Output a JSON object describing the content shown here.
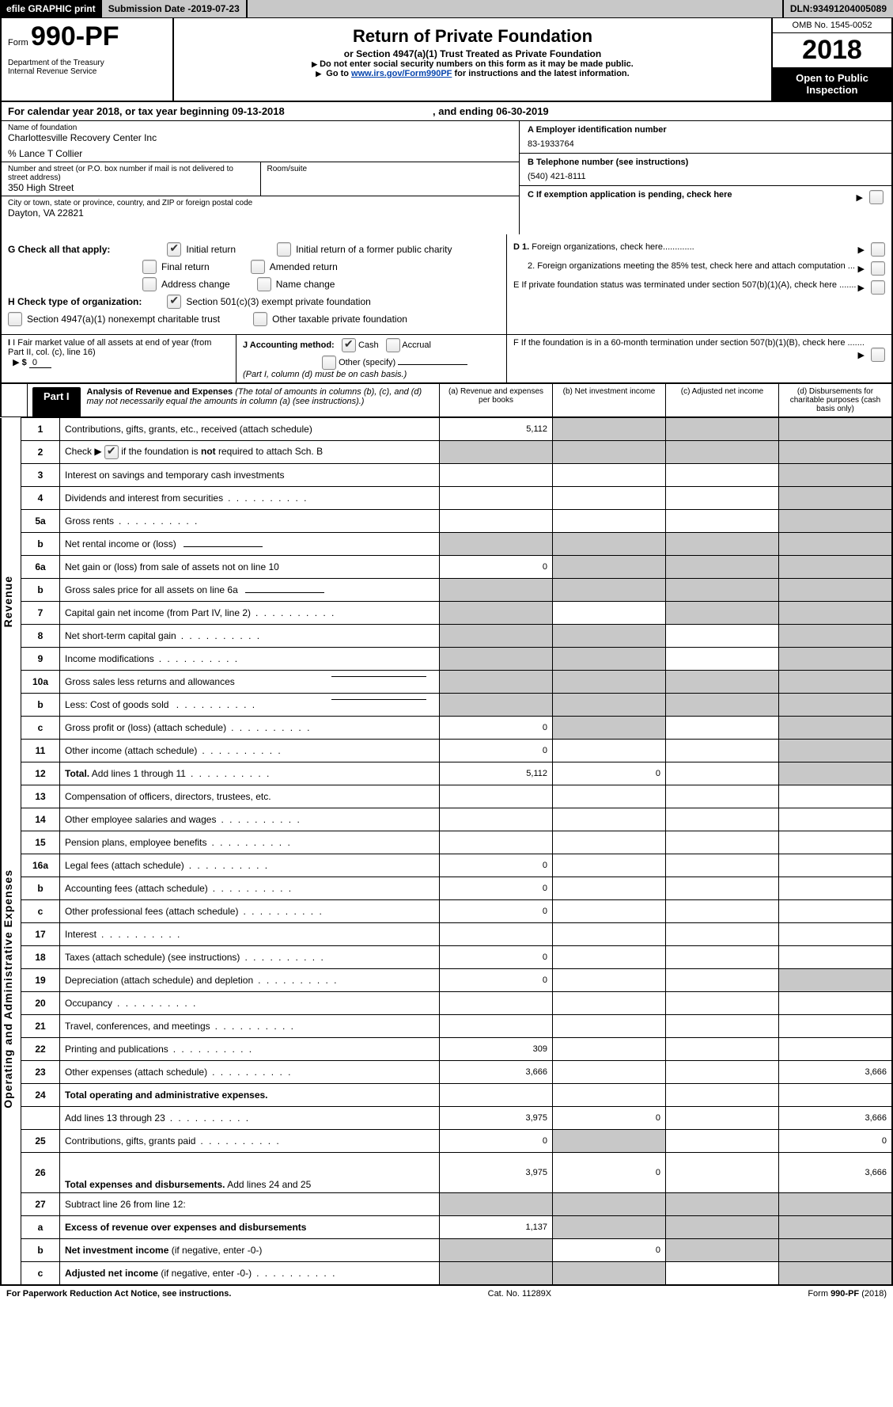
{
  "topbar": {
    "efile": "efile GRAPHIC print",
    "submission_label": "Submission Date - ",
    "submission_date": "2019-07-23",
    "dln_label": "DLN: ",
    "dln": "93491204005089"
  },
  "header": {
    "form_prefix": "Form",
    "form_number": "990-PF",
    "dept1": "Department of the Treasury",
    "dept2": "Internal Revenue Service",
    "title": "Return of Private Foundation",
    "subtitle": "or Section 4947(a)(1) Trust Treated as Private Foundation",
    "warn": "Do not enter social security numbers on this form as it may be made public.",
    "goto_pre": "Go to ",
    "goto_link": "www.irs.gov/Form990PF",
    "goto_post": " for instructions and the latest information.",
    "omb": "OMB No. 1545-0052",
    "year": "2018",
    "open1": "Open to Public",
    "open2": "Inspection"
  },
  "calendar": {
    "pre": "For calendar year 2018, or tax year beginning ",
    "begin": "09-13-2018",
    "mid": ", and ending ",
    "end": "06-30-2019"
  },
  "entity": {
    "name_lbl": "Name of foundation",
    "name": "Charlottesville Recovery Center Inc",
    "care_of": "% Lance T Collier",
    "addr_lbl": "Number and street (or P.O. box number if mail is not delivered to street address)",
    "addr": "350 High Street",
    "room_lbl": "Room/suite",
    "room": "",
    "city_lbl": "City or town, state or province, country, and ZIP or foreign postal code",
    "city": "Dayton, VA  22821"
  },
  "right": {
    "A_lbl": "A Employer identification number",
    "A_val": "83-1933764",
    "B_lbl": "B Telephone number (see instructions)",
    "B_val": "(540) 421-8111",
    "C_lbl": "C  If exemption application is pending, check here",
    "D1": "D 1. Foreign organizations, check here.............",
    "D2": "2. Foreign organizations meeting the 85% test, check here and attach computation ...",
    "E": "E   If private foundation status was terminated under section 507(b)(1)(A), check here .......",
    "F": "F   If the foundation is in a 60-month termination under section 507(b)(1)(B), check here ......."
  },
  "G": {
    "label": "G Check all that apply:",
    "initial": "Initial return",
    "initial_former": "Initial return of a former public charity",
    "final": "Final return",
    "amended": "Amended return",
    "address": "Address change",
    "name": "Name change"
  },
  "H": {
    "label": "H Check type of organization:",
    "opt1": "Section 501(c)(3) exempt private foundation",
    "opt2": "Section 4947(a)(1) nonexempt charitable trust",
    "opt3": "Other taxable private foundation"
  },
  "I": {
    "label": "I Fair market value of all assets at end of year (from Part II, col. (c), line 16)",
    "arrow": "▶",
    "dollar": "$",
    "value": "0"
  },
  "J": {
    "label": "J Accounting method:",
    "cash": "Cash",
    "accrual": "Accrual",
    "other": "Other (specify)",
    "note": "(Part I, column (d) must be on cash basis.)"
  },
  "part1": {
    "tab": "Part I",
    "title": "Analysis of Revenue and Expenses ",
    "note": "(The total of amounts in columns (b), (c), and (d) may not necessarily equal the amounts in column (a) (see instructions).)",
    "cols": {
      "a": "(a)    Revenue and expenses per books",
      "b": "(b)    Net investment income",
      "c": "(c)    Adjusted net income",
      "d": "(d)    Disbursements for charitable purposes (cash basis only)"
    }
  },
  "side": {
    "revenue": "Revenue",
    "expenses": "Operating and Administrative Expenses"
  },
  "rows": [
    {
      "n": "1",
      "d": "Contributions, gifts, grants, etc., received (attach schedule)",
      "a": "5,112",
      "bGrey": true,
      "cGrey": true,
      "dGrey": true
    },
    {
      "n": "2",
      "d": "Check ▶  [CB_CHECKED]  if the foundation is <b>not</b> required to attach Sch. B",
      "aGrey": true,
      "bGrey": true,
      "cGrey": true,
      "dGrey": true
    },
    {
      "n": "3",
      "d": "Interest on savings and temporary cash investments",
      "dGrey": true
    },
    {
      "n": "4",
      "d": "Dividends and interest from securities",
      "dots": true,
      "dGrey": true
    },
    {
      "n": "5a",
      "d": "Gross rents",
      "dots": true,
      "dGrey": true
    },
    {
      "n": "b",
      "d": "Net rental income or (loss)",
      "underline": true,
      "aGrey": true,
      "bGrey": true,
      "cGrey": true,
      "dGrey": true
    },
    {
      "n": "6a",
      "d": "Net gain or (loss) from sale of assets not on line 10",
      "a": "0",
      "bGrey": true,
      "cGrey": true,
      "dGrey": true
    },
    {
      "n": "b",
      "d": "Gross sales price for all assets on line 6a",
      "underline": true,
      "aGrey": true,
      "bGrey": true,
      "cGrey": true,
      "dGrey": true
    },
    {
      "n": "7",
      "d": "Capital gain net income (from Part IV, line 2)",
      "dots": true,
      "aGrey": true,
      "cGrey": true,
      "dGrey": true
    },
    {
      "n": "8",
      "d": "Net short-term capital gain",
      "dots": true,
      "aGrey": true,
      "bGrey": true,
      "dGrey": true
    },
    {
      "n": "9",
      "d": "Income modifications",
      "dots": true,
      "aGrey": true,
      "bGrey": true,
      "dGrey": true
    },
    {
      "n": "10a",
      "d": "Gross sales less returns and allowances",
      "underline_end": true,
      "aGrey": true,
      "bGrey": true,
      "cGrey": true,
      "dGrey": true
    },
    {
      "n": "b",
      "d": "Less: Cost of goods sold",
      "dots": true,
      "underline_end": true,
      "aGrey": true,
      "bGrey": true,
      "cGrey": true,
      "dGrey": true
    },
    {
      "n": "c",
      "d": "Gross profit or (loss) (attach schedule)",
      "dots": true,
      "a": "0",
      "bGrey": true,
      "dGrey": true
    },
    {
      "n": "11",
      "d": "Other income (attach schedule)",
      "dots": true,
      "a": "0",
      "dGrey": true
    },
    {
      "n": "12",
      "d": "<b>Total.</b> Add lines 1 through 11",
      "dots": true,
      "a": "5,112",
      "b": "0",
      "dGrey": true
    }
  ],
  "exp_rows": [
    {
      "n": "13",
      "d": "Compensation of officers, directors, trustees, etc."
    },
    {
      "n": "14",
      "d": "Other employee salaries and wages",
      "dots": true
    },
    {
      "n": "15",
      "d": "Pension plans, employee benefits",
      "dots": true
    },
    {
      "n": "16a",
      "d": "Legal fees (attach schedule)",
      "dots": true,
      "a": "0"
    },
    {
      "n": "b",
      "d": "Accounting fees (attach schedule)",
      "dots": true,
      "a": "0"
    },
    {
      "n": "c",
      "d": "Other professional fees (attach schedule)",
      "dots": true,
      "a": "0"
    },
    {
      "n": "17",
      "d": "Interest",
      "dots": true
    },
    {
      "n": "18",
      "d": "Taxes (attach schedule) (see instructions)",
      "dots": true,
      "a": "0"
    },
    {
      "n": "19",
      "d": "Depreciation (attach schedule) and depletion",
      "dots": true,
      "a": "0",
      "dGrey": true
    },
    {
      "n": "20",
      "d": "Occupancy",
      "dots": true
    },
    {
      "n": "21",
      "d": "Travel, conferences, and meetings",
      "dots": true
    },
    {
      "n": "22",
      "d": "Printing and publications",
      "dots": true,
      "a": "309"
    },
    {
      "n": "23",
      "d": "Other expenses (attach schedule)",
      "dots": true,
      "a": "3,666",
      "dv": "3,666"
    },
    {
      "n": "24",
      "d": "<b>Total operating and administrative expenses.</b>",
      "twoRow": true
    },
    {
      "n": "",
      "d": "Add lines 13 through 23",
      "dots": true,
      "a": "3,975",
      "b": "0",
      "dv": "3,666"
    },
    {
      "n": "25",
      "d": "Contributions, gifts, grants paid",
      "dots": true,
      "a": "0",
      "bGrey": true,
      "dv": "0"
    },
    {
      "n": "26",
      "d": "<b>Total expenses and disbursements.</b> Add lines 24 and 25",
      "tall": true,
      "a": "3,975",
      "b": "0",
      "dv": "3,666"
    }
  ],
  "sub_rows": [
    {
      "n": "27",
      "d": "Subtract line 26 from line 12:",
      "aGrey": true,
      "bGrey": true,
      "cGrey": true,
      "dGrey": true
    },
    {
      "n": "a",
      "d": "<b>Excess of revenue over expenses and disbursements</b>",
      "a": "1,137",
      "bGrey": true,
      "cGrey": true,
      "dGrey": true
    },
    {
      "n": "b",
      "d": "<b>Net investment income</b> (if negative, enter -0-)",
      "aGrey": true,
      "b": "0",
      "cGrey": true,
      "dGrey": true
    },
    {
      "n": "c",
      "d": "<b>Adjusted net income</b> (if negative, enter -0-)",
      "dots": true,
      "aGrey": true,
      "bGrey": true,
      "dGrey": true
    }
  ],
  "footer": {
    "left": "For Paperwork Reduction Act Notice, see instructions.",
    "mid": "Cat. No. 11289X",
    "right_pre": "Form ",
    "right_form": "990-PF",
    "right_post": " (2018)"
  },
  "colors": {
    "grey": "#c8c8c8",
    "link": "#0645ad"
  }
}
